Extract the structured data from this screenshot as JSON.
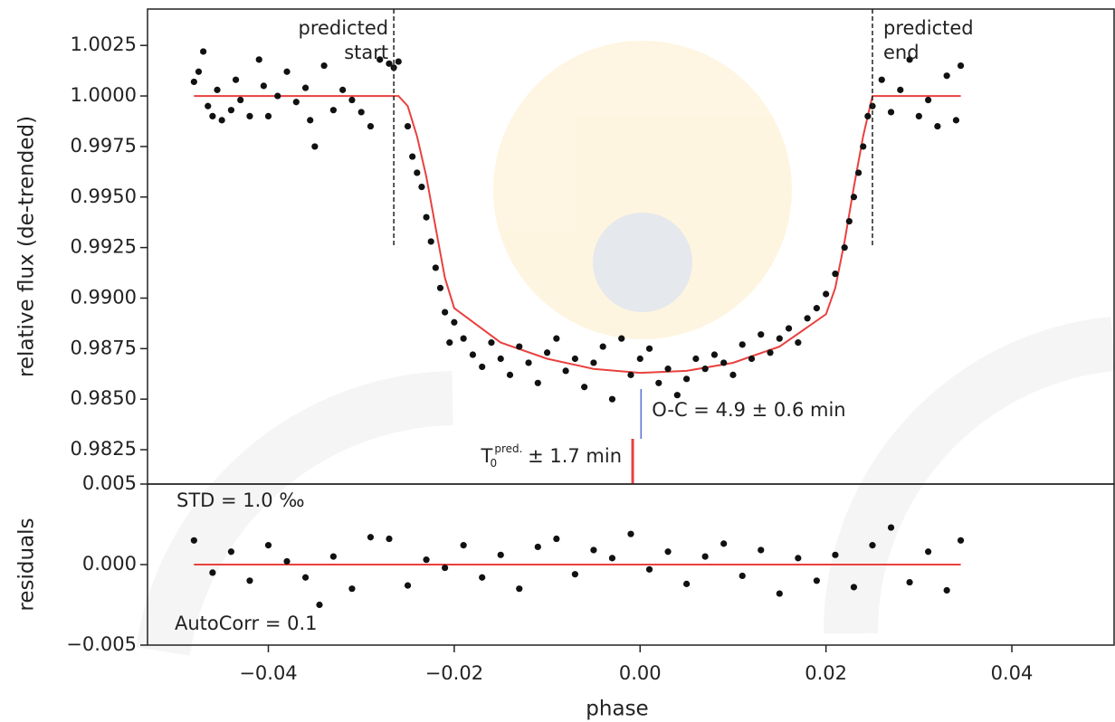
{
  "chart_data": [
    {
      "type": "scatter",
      "ylabel": "relative flux (de-trended)",
      "xlim": [
        -0.053,
        0.051
      ],
      "ylim": [
        0.9808,
        1.0043
      ],
      "yticks": [
        {
          "value": 0.9825,
          "label": "0.9825"
        },
        {
          "value": 0.985,
          "label": "0.9850"
        },
        {
          "value": 0.9875,
          "label": "0.9875"
        },
        {
          "value": 0.99,
          "label": "0.9900"
        },
        {
          "value": 0.9925,
          "label": "0.9925"
        },
        {
          "value": 0.995,
          "label": "0.9950"
        },
        {
          "value": 0.9975,
          "label": "0.9975"
        },
        {
          "value": 1.0,
          "label": "1.0000"
        },
        {
          "value": 1.0025,
          "label": "1.0025"
        }
      ],
      "points": {
        "color": "#111111",
        "x": [
          -0.048,
          -0.0475,
          -0.047,
          -0.0465,
          -0.046,
          -0.0455,
          -0.045,
          -0.044,
          -0.0435,
          -0.043,
          -0.042,
          -0.041,
          -0.0405,
          -0.04,
          -0.039,
          -0.038,
          -0.037,
          -0.036,
          -0.0355,
          -0.035,
          -0.034,
          -0.033,
          -0.032,
          -0.031,
          -0.03,
          -0.029,
          -0.028,
          -0.027,
          -0.0265,
          -0.026,
          -0.025,
          -0.0245,
          -0.024,
          -0.0235,
          -0.023,
          -0.0225,
          -0.022,
          -0.0215,
          -0.021,
          -0.0205,
          -0.02,
          -0.019,
          -0.018,
          -0.017,
          -0.016,
          -0.015,
          -0.014,
          -0.013,
          -0.012,
          -0.011,
          -0.01,
          -0.009,
          -0.008,
          -0.007,
          -0.006,
          -0.005,
          -0.004,
          -0.003,
          -0.002,
          -0.001,
          0.0,
          0.001,
          0.002,
          0.003,
          0.004,
          0.005,
          0.006,
          0.007,
          0.008,
          0.009,
          0.01,
          0.011,
          0.012,
          0.013,
          0.014,
          0.015,
          0.016,
          0.017,
          0.018,
          0.019,
          0.02,
          0.021,
          0.022,
          0.0225,
          0.023,
          0.0235,
          0.024,
          0.0245,
          0.025,
          0.026,
          0.027,
          0.028,
          0.029,
          0.03,
          0.031,
          0.032,
          0.033,
          0.034,
          0.0345
        ],
        "values": [
          1.0007,
          1.0012,
          1.0022,
          0.9995,
          0.999,
          1.0003,
          0.9988,
          0.9993,
          1.0008,
          0.9998,
          0.999,
          1.0018,
          1.0005,
          0.999,
          1.0,
          1.0012,
          0.9997,
          1.0004,
          0.9988,
          0.9975,
          1.0015,
          0.9993,
          1.0003,
          0.9998,
          0.9992,
          0.9985,
          1.0018,
          1.0016,
          1.0014,
          1.0017,
          0.9985,
          0.997,
          0.9962,
          0.9955,
          0.994,
          0.9928,
          0.9915,
          0.9905,
          0.9893,
          0.9878,
          0.9888,
          0.988,
          0.9872,
          0.9866,
          0.9878,
          0.987,
          0.9862,
          0.9876,
          0.9868,
          0.9858,
          0.9873,
          0.988,
          0.9864,
          0.987,
          0.9856,
          0.9868,
          0.9876,
          0.985,
          0.988,
          0.9862,
          0.987,
          0.9875,
          0.9858,
          0.9865,
          0.9852,
          0.986,
          0.987,
          0.9865,
          0.9872,
          0.9868,
          0.9862,
          0.9877,
          0.987,
          0.9882,
          0.9873,
          0.988,
          0.9885,
          0.9878,
          0.989,
          0.9895,
          0.9902,
          0.9912,
          0.9925,
          0.9938,
          0.995,
          0.9962,
          0.9975,
          0.999,
          0.9995,
          1.0008,
          0.9992,
          1.0003,
          1.0018,
          0.999,
          0.9998,
          0.9985,
          1.001,
          0.9988,
          1.0015
        ]
      },
      "model": {
        "color": "#e8413f",
        "x": [
          -0.048,
          -0.026,
          -0.025,
          -0.024,
          -0.023,
          -0.022,
          -0.021,
          -0.02,
          -0.015,
          -0.01,
          -0.005,
          0.0,
          0.005,
          0.01,
          0.015,
          0.02,
          0.021,
          0.022,
          0.023,
          0.024,
          0.025,
          0.0345
        ],
        "values": [
          1.0,
          1.0,
          0.9995,
          0.998,
          0.996,
          0.9935,
          0.991,
          0.9895,
          0.9878,
          0.987,
          0.9865,
          0.9863,
          0.9864,
          0.9868,
          0.9876,
          0.9892,
          0.9905,
          0.9928,
          0.9955,
          0.998,
          1.0,
          1.0
        ]
      },
      "markers": {
        "predicted_start": -0.0265,
        "predicted_end": 0.025,
        "t0_observed": 0.0001,
        "t0_predicted": -0.0008
      },
      "predicted_start_label": [
        "predicted",
        "start"
      ],
      "predicted_end_label": [
        "predicted",
        "end"
      ],
      "oc_label": "O-C = 4.9 ± 0.6 min",
      "t0_label": {
        "symbol": "T",
        "sub": "0",
        "sup": "pred.",
        "text": "± 1.7 min"
      }
    },
    {
      "type": "scatter",
      "ylabel": "residuals",
      "xlabel": "phase",
      "xlim": [
        -0.053,
        0.051
      ],
      "ylim": [
        -0.005,
        0.005
      ],
      "yticks": [
        {
          "value": -0.005,
          "label": "−0.005"
        },
        {
          "value": 0,
          "label": "0.000"
        },
        {
          "value": 0.005,
          "label": "0.005"
        }
      ],
      "xticks": [
        {
          "value": -0.04,
          "label": "−0.04"
        },
        {
          "value": -0.02,
          "label": "−0.02"
        },
        {
          "value": 0,
          "label": "0.00"
        },
        {
          "value": 0.02,
          "label": "0.02"
        },
        {
          "value": 0.04,
          "label": "0.04"
        }
      ],
      "points": {
        "color": "#111111",
        "x": [
          -0.048,
          -0.046,
          -0.044,
          -0.042,
          -0.04,
          -0.038,
          -0.036,
          -0.0345,
          -0.033,
          -0.031,
          -0.029,
          -0.027,
          -0.025,
          -0.023,
          -0.021,
          -0.019,
          -0.017,
          -0.015,
          -0.013,
          -0.011,
          -0.009,
          -0.007,
          -0.005,
          -0.003,
          -0.001,
          0.001,
          0.003,
          0.005,
          0.007,
          0.009,
          0.011,
          0.013,
          0.015,
          0.017,
          0.019,
          0.021,
          0.023,
          0.025,
          0.027,
          0.029,
          0.031,
          0.033,
          0.0345
        ],
        "values": [
          0.0015,
          -0.0005,
          0.0008,
          -0.001,
          0.0012,
          0.0002,
          -0.0008,
          -0.0025,
          0.0005,
          -0.0015,
          0.0017,
          0.0016,
          -0.0013,
          0.0003,
          -0.0002,
          0.0012,
          -0.0008,
          0.0006,
          -0.0015,
          0.0011,
          0.0016,
          -0.0006,
          0.0009,
          0.0004,
          0.0019,
          -0.0003,
          0.0008,
          -0.0012,
          0.0005,
          0.0013,
          -0.0007,
          0.0009,
          -0.0018,
          0.0004,
          -0.001,
          0.0006,
          -0.0014,
          0.0012,
          0.0023,
          -0.0011,
          0.0008,
          -0.0016,
          0.0015
        ]
      },
      "model": {
        "color": "#e8413f",
        "x": [
          -0.048,
          0.0345
        ],
        "values": [
          0,
          0
        ]
      },
      "std_label": "STD = 1.0 ‰",
      "autocorr_label": "AutoCorr = 0.1"
    }
  ]
}
